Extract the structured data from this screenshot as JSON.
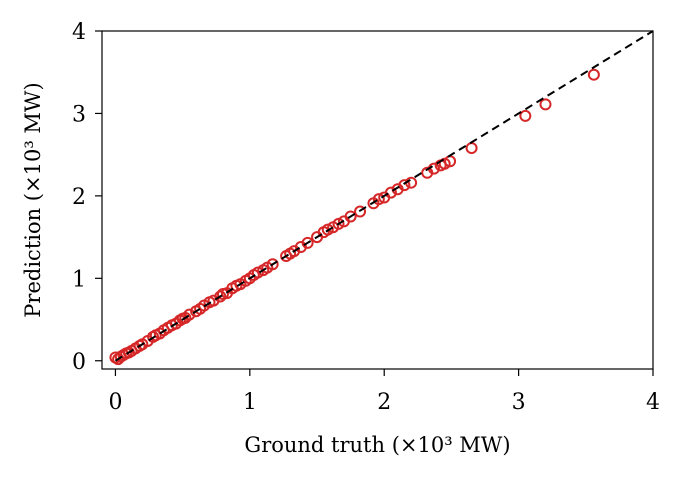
{
  "chart_data": {
    "type": "scatter",
    "title": "",
    "xlabel": "Ground truth (×10³ MW)",
    "ylabel": "Prediction (×10³ MW)",
    "xlim": [
      -0.1,
      4
    ],
    "ylim": [
      -0.1,
      4
    ],
    "xticks": [
      "0",
      "1",
      "2",
      "3",
      "4"
    ],
    "yticks": [
      "0",
      "1",
      "2",
      "3",
      "4"
    ],
    "grid": false,
    "reference_line": {
      "style": "dashed",
      "color": "#000000",
      "from": [
        0,
        0
      ],
      "to": [
        4,
        4
      ]
    },
    "series": [
      {
        "marker": "open-circle",
        "color": "#d62728",
        "points": [
          [
            0.0,
            0.04
          ],
          [
            0.02,
            0.02
          ],
          [
            0.04,
            0.05
          ],
          [
            0.06,
            0.07
          ],
          [
            0.08,
            0.09
          ],
          [
            0.1,
            0.1
          ],
          [
            0.12,
            0.12
          ],
          [
            0.15,
            0.15
          ],
          [
            0.18,
            0.18
          ],
          [
            0.2,
            0.2
          ],
          [
            0.24,
            0.24
          ],
          [
            0.28,
            0.29
          ],
          [
            0.3,
            0.31
          ],
          [
            0.33,
            0.33
          ],
          [
            0.36,
            0.37
          ],
          [
            0.39,
            0.4
          ],
          [
            0.42,
            0.43
          ],
          [
            0.45,
            0.45
          ],
          [
            0.48,
            0.49
          ],
          [
            0.5,
            0.51
          ],
          [
            0.52,
            0.52
          ],
          [
            0.55,
            0.56
          ],
          [
            0.6,
            0.6
          ],
          [
            0.63,
            0.63
          ],
          [
            0.66,
            0.67
          ],
          [
            0.7,
            0.71
          ],
          [
            0.73,
            0.73
          ],
          [
            0.78,
            0.78
          ],
          [
            0.8,
            0.81
          ],
          [
            0.83,
            0.82
          ],
          [
            0.87,
            0.88
          ],
          [
            0.9,
            0.91
          ],
          [
            0.93,
            0.93
          ],
          [
            0.97,
            0.97
          ],
          [
            1.0,
            1.0
          ],
          [
            1.03,
            1.04
          ],
          [
            1.06,
            1.07
          ],
          [
            1.1,
            1.1
          ],
          [
            1.13,
            1.13
          ],
          [
            1.17,
            1.17
          ],
          [
            1.27,
            1.27
          ],
          [
            1.3,
            1.3
          ],
          [
            1.33,
            1.33
          ],
          [
            1.38,
            1.38
          ],
          [
            1.43,
            1.43
          ],
          [
            1.5,
            1.5
          ],
          [
            1.55,
            1.56
          ],
          [
            1.58,
            1.59
          ],
          [
            1.62,
            1.62
          ],
          [
            1.66,
            1.66
          ],
          [
            1.7,
            1.69
          ],
          [
            1.75,
            1.75
          ],
          [
            1.82,
            1.81
          ],
          [
            1.92,
            1.91
          ],
          [
            1.96,
            1.96
          ],
          [
            2.0,
            1.98
          ],
          [
            2.05,
            2.04
          ],
          [
            2.1,
            2.08
          ],
          [
            2.15,
            2.13
          ],
          [
            2.2,
            2.16
          ],
          [
            2.32,
            2.28
          ],
          [
            2.37,
            2.33
          ],
          [
            2.42,
            2.37
          ],
          [
            2.45,
            2.39
          ],
          [
            2.49,
            2.42
          ],
          [
            2.65,
            2.58
          ],
          [
            3.05,
            2.97
          ],
          [
            3.2,
            3.11
          ],
          [
            3.56,
            3.47
          ]
        ]
      }
    ]
  }
}
